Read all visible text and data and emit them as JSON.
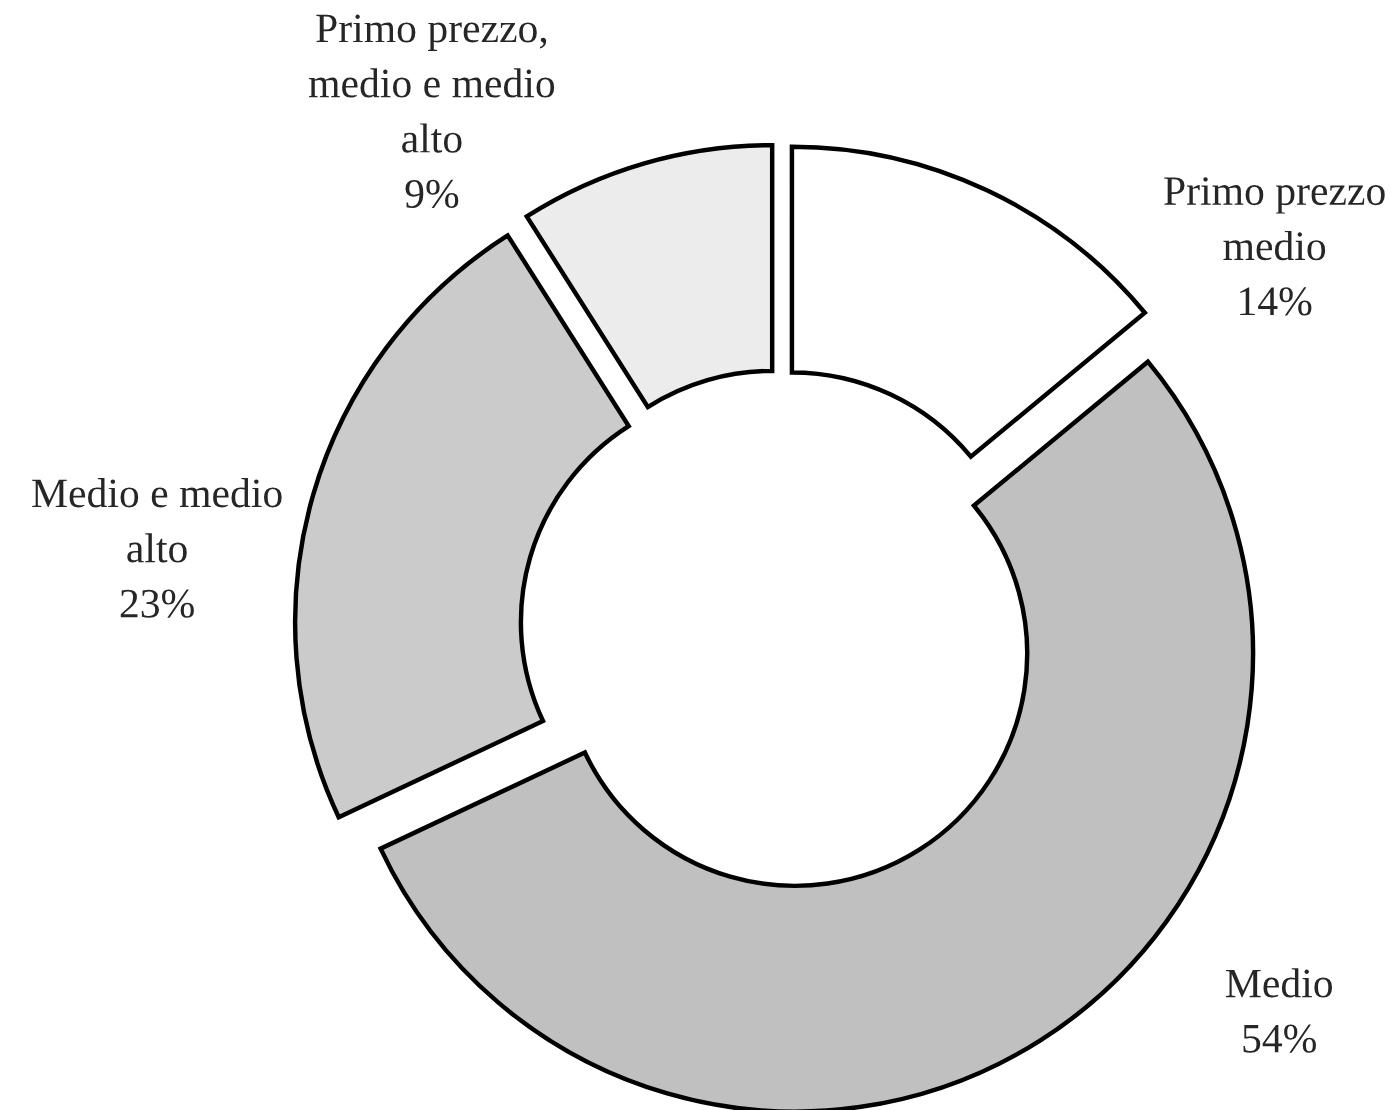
{
  "chart_data": {
    "type": "donut",
    "categories": [
      "Primo prezzo\nmedio",
      "Medio",
      "Medio e medio\nalto",
      "Primo prezzo,\nmedio e medio\nalto"
    ],
    "values": [
      14,
      54,
      23,
      9
    ],
    "colors": [
      "#ffffff",
      "#c0c0c0",
      "#cbcbcb",
      "#ececec"
    ],
    "value_labels": [
      "14%",
      "54%",
      "23%",
      "9%"
    ]
  }
}
